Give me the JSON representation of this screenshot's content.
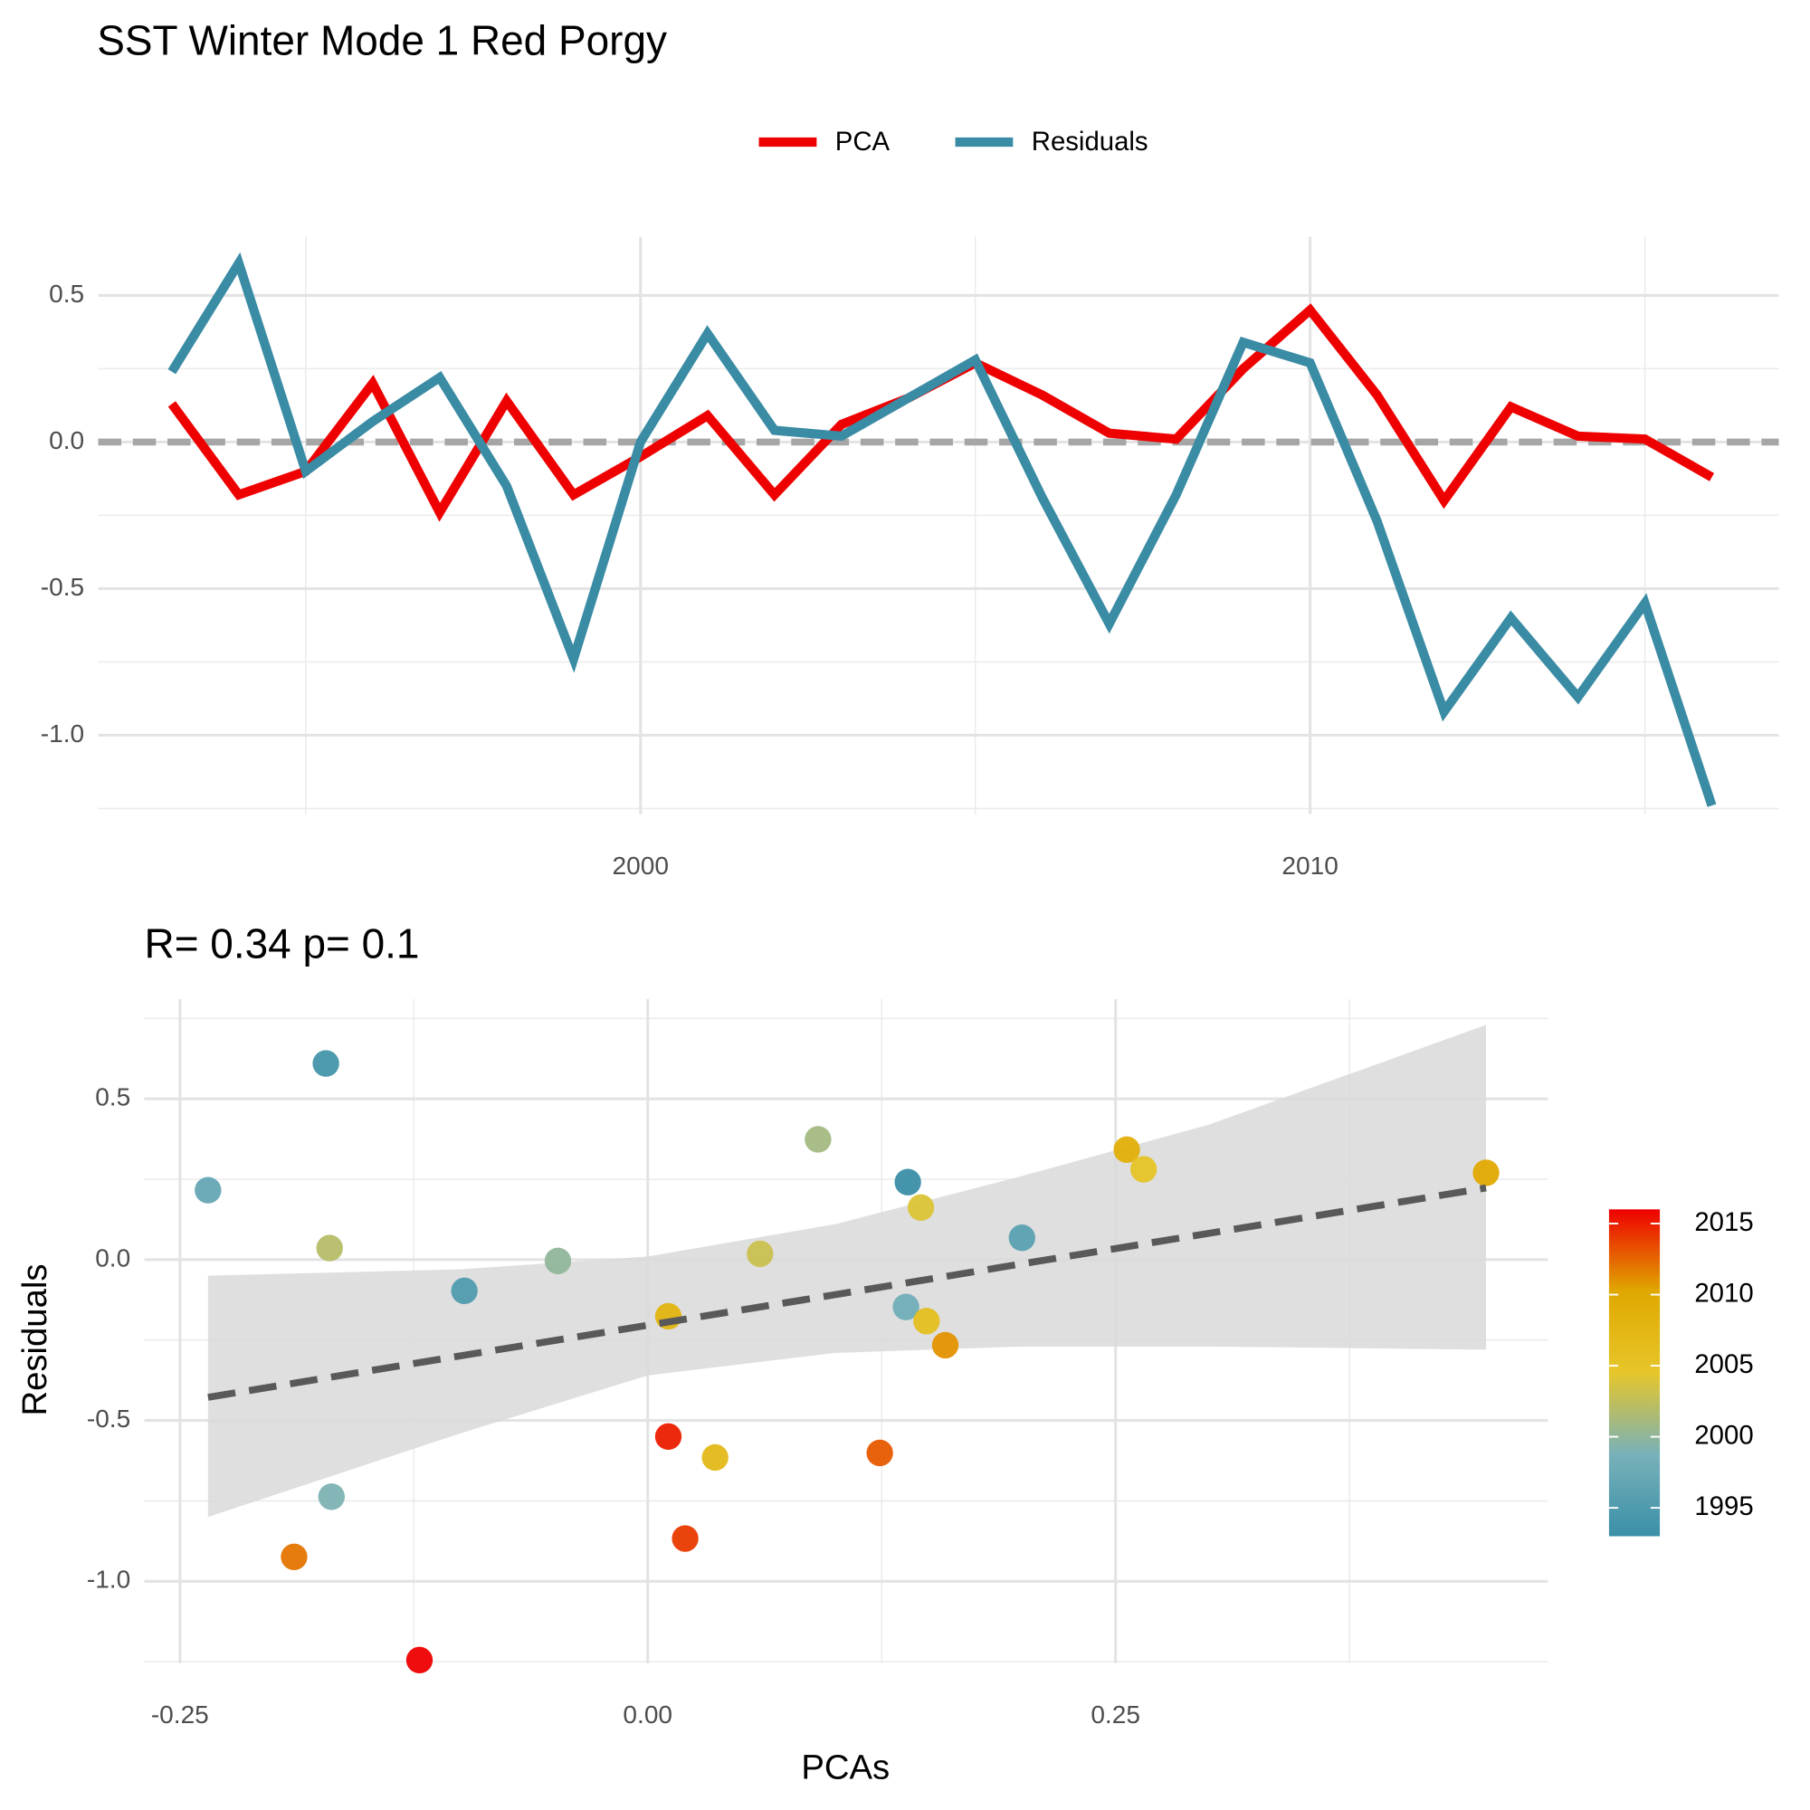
{
  "chart_data": [
    {
      "type": "line",
      "title": "SST Winter Mode 1  Red Porgy",
      "x": [
        1993,
        1994,
        1995,
        1996,
        1997,
        1998,
        1999,
        2000,
        2001,
        2002,
        2003,
        2004,
        2005,
        2006,
        2007,
        2008,
        2009,
        2010,
        2011,
        2012,
        2013,
        2014,
        2015,
        2016
      ],
      "series": [
        {
          "name": "PCA",
          "color": "#ee0000",
          "values": [
            0.13,
            -0.18,
            -0.1,
            0.2,
            -0.24,
            0.14,
            -0.18,
            -0.05,
            0.09,
            -0.18,
            0.06,
            0.15,
            0.27,
            0.16,
            0.03,
            0.01,
            0.25,
            0.45,
            0.16,
            -0.2,
            0.12,
            0.02,
            0.01,
            -0.12
          ]
        },
        {
          "name": "Residuals",
          "color": "#3a8ba4",
          "values": [
            0.24,
            0.61,
            -0.1,
            0.07,
            0.22,
            -0.15,
            -0.74,
            0.0,
            0.37,
            0.04,
            0.02,
            0.15,
            0.28,
            -0.19,
            -0.62,
            -0.18,
            0.34,
            0.27,
            -0.27,
            -0.92,
            -0.6,
            -0.87,
            -0.55,
            -1.24
          ]
        }
      ],
      "xlim": [
        1991.9,
        2017
      ],
      "xticks": [
        2000,
        2010
      ],
      "xminor": [
        1995,
        2005,
        2015
      ],
      "ylim": [
        -1.27,
        0.7
      ],
      "yticks": [
        {
          "value": -1.0,
          "label": "-1.0"
        },
        -0.5,
        {
          "value": 0.0,
          "label": "0.0"
        },
        0.5
      ],
      "yminor": [
        -1.25,
        -0.75,
        -0.25,
        0.25
      ],
      "reference_line": 0,
      "grid": true,
      "legend": "top"
    },
    {
      "type": "scatter",
      "title": "R= 0.34  p= 0.1",
      "x_label": "PCAs",
      "y_label": "Residuals",
      "x": [
        -0.235,
        -0.172,
        -0.17,
        -0.098,
        -0.048,
        -0.169,
        -0.189,
        -0.122,
        0.011,
        0.011,
        0.036,
        0.02,
        0.06,
        0.091,
        0.124,
        0.138,
        0.139,
        0.146,
        0.149,
        0.159,
        0.2,
        0.256,
        0.265,
        0.448
      ],
      "y": [
        0.216,
        0.61,
        0.036,
        -0.097,
        -0.004,
        -0.737,
        -0.924,
        -1.245,
        -0.176,
        -0.55,
        -0.615,
        -0.867,
        0.018,
        0.374,
        -0.601,
        -0.147,
        0.241,
        0.162,
        -0.191,
        -0.266,
        0.068,
        0.342,
        0.281,
        0.27
      ],
      "color_values": [
        1997,
        1994,
        2002,
        1995,
        2000,
        1999,
        2012,
        2016,
        2008,
        2015,
        2007,
        2014,
        2003,
        2001,
        2013,
        1998,
        1993,
        2004,
        2006,
        2011,
        1996,
        2009,
        2005,
        2010
      ],
      "colorbar": {
        "lim": [
          1993,
          2016
        ],
        "ticks": [
          1995,
          2000,
          2005,
          2010,
          2015
        ],
        "colors": [
          "#3a8fa8",
          "#78b1b9",
          "#e6c62a",
          "#e0a800",
          "#ee0000"
        ]
      },
      "fit": {
        "x": [
          -0.235,
          -0.1,
          0,
          0.1,
          0.2,
          0.3,
          0.448
        ],
        "y": [
          -0.428,
          -0.299,
          -0.204,
          -0.109,
          -0.013,
          0.082,
          0.223
        ],
        "lower": [
          -0.8,
          -0.54,
          -0.36,
          -0.29,
          -0.27,
          -0.27,
          -0.28
        ],
        "upper": [
          -0.05,
          -0.03,
          0.01,
          0.11,
          0.26,
          0.42,
          0.73
        ]
      },
      "xlim": [
        -0.269,
        0.481
      ],
      "xticks": [
        -0.25,
        {
          "value": 0.0,
          "label": "0.00"
        },
        0.25
      ],
      "xminor": [
        -0.125,
        0.125,
        0.375
      ],
      "ylim": [
        -1.255,
        0.81
      ],
      "yticks": [
        {
          "value": -1.0,
          "label": "-1.0"
        },
        -0.5,
        {
          "value": 0.0,
          "label": "0.0"
        },
        0.5
      ],
      "yminor": [
        -1.25,
        -0.75,
        -0.25,
        0.25,
        0.75
      ],
      "grid": true
    }
  ]
}
